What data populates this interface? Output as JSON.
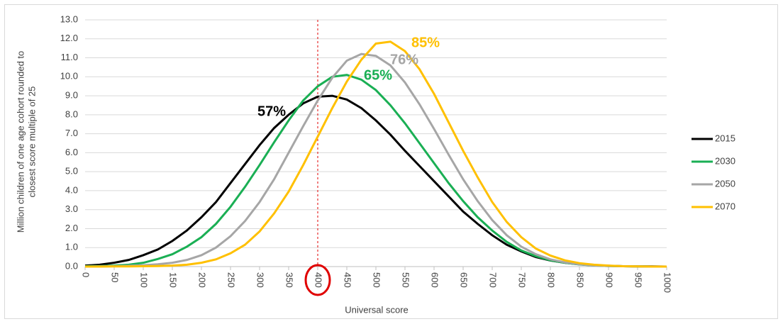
{
  "chart_data": {
    "type": "line",
    "xlabel": "Universal score",
    "ylabel": [
      "Million children of one age cohort rounded to",
      "closest score multiple of 25"
    ],
    "x": [
      0,
      25,
      50,
      75,
      100,
      125,
      150,
      175,
      200,
      225,
      250,
      275,
      300,
      325,
      350,
      375,
      400,
      425,
      450,
      475,
      500,
      525,
      550,
      575,
      600,
      625,
      650,
      675,
      700,
      725,
      750,
      775,
      800,
      825,
      850,
      875,
      900,
      925,
      950,
      975,
      1000
    ],
    "series": [
      {
        "name": "2015",
        "color": "#000000",
        "values": [
          0.05,
          0.1,
          0.2,
          0.35,
          0.6,
          0.9,
          1.35,
          1.9,
          2.6,
          3.4,
          4.4,
          5.4,
          6.4,
          7.3,
          8.0,
          8.6,
          8.95,
          9.0,
          8.8,
          8.35,
          7.7,
          6.95,
          6.1,
          5.3,
          4.5,
          3.7,
          2.9,
          2.25,
          1.65,
          1.15,
          0.8,
          0.5,
          0.32,
          0.2,
          0.12,
          0.07,
          0.04,
          0.02,
          0.01,
          0.01,
          0.0
        ]
      },
      {
        "name": "2030",
        "color": "#1aaf54",
        "values": [
          0.02,
          0.03,
          0.05,
          0.1,
          0.2,
          0.4,
          0.65,
          1.05,
          1.55,
          2.25,
          3.15,
          4.2,
          5.35,
          6.55,
          7.7,
          8.75,
          9.5,
          10.0,
          10.1,
          9.85,
          9.3,
          8.5,
          7.55,
          6.5,
          5.45,
          4.4,
          3.45,
          2.6,
          1.9,
          1.3,
          0.85,
          0.55,
          0.33,
          0.2,
          0.11,
          0.06,
          0.03,
          0.02,
          0.01,
          0.0,
          0.0
        ]
      },
      {
        "name": "2050",
        "color": "#a6a6a6",
        "values": [
          0.0,
          0.01,
          0.02,
          0.04,
          0.07,
          0.12,
          0.2,
          0.35,
          0.6,
          1.0,
          1.6,
          2.4,
          3.4,
          4.6,
          6.0,
          7.4,
          8.75,
          9.95,
          10.85,
          11.2,
          11.1,
          10.6,
          9.7,
          8.55,
          7.25,
          5.9,
          4.6,
          3.45,
          2.45,
          1.65,
          1.05,
          0.65,
          0.38,
          0.22,
          0.12,
          0.06,
          0.03,
          0.02,
          0.01,
          0.0,
          0.0
        ]
      },
      {
        "name": "2070",
        "color": "#ffc000",
        "values": [
          0.0,
          0.0,
          0.01,
          0.01,
          0.02,
          0.03,
          0.05,
          0.1,
          0.2,
          0.38,
          0.7,
          1.15,
          1.85,
          2.8,
          3.95,
          5.35,
          6.85,
          8.35,
          9.75,
          10.9,
          11.75,
          11.85,
          11.35,
          10.4,
          9.1,
          7.6,
          6.1,
          4.7,
          3.4,
          2.35,
          1.55,
          0.95,
          0.58,
          0.33,
          0.18,
          0.1,
          0.05,
          0.02,
          0.01,
          0.0,
          0.0
        ]
      }
    ],
    "annotations": [
      {
        "text": "57%",
        "color": "#000000"
      },
      {
        "text": "65%",
        "color": "#1aaf54"
      },
      {
        "text": "76%",
        "color": "#a6a6a6"
      },
      {
        "text": "85%",
        "color": "#ffc000"
      }
    ],
    "reference_x": 400,
    "reference_color": "#e00000",
    "xlim": [
      0,
      1000
    ],
    "xticks": [
      0,
      50,
      100,
      150,
      200,
      250,
      300,
      350,
      400,
      450,
      500,
      550,
      600,
      650,
      700,
      750,
      800,
      850,
      900,
      950,
      1000
    ],
    "ylim": [
      0,
      13
    ],
    "yticks": [
      {
        "value": 0,
        "label": "0.0"
      },
      {
        "value": 1,
        "label": "1.0"
      },
      {
        "value": 2,
        "label": "2.0"
      },
      {
        "value": 3,
        "label": "3.0"
      },
      {
        "value": 4,
        "label": "4.0"
      },
      {
        "value": 5,
        "label": "5.0"
      },
      {
        "value": 6,
        "label": "6.0"
      },
      {
        "value": 7,
        "label": "7.0"
      },
      {
        "value": 8,
        "label": "8.0"
      },
      {
        "value": 9,
        "label": "9.0"
      },
      {
        "value": 10,
        "label": "10.0"
      },
      {
        "value": 11,
        "label": "11.0"
      },
      {
        "value": 12,
        "label": "12.0"
      },
      {
        "value": 13,
        "label": "13.0"
      }
    ],
    "grid": true,
    "legend": "right"
  }
}
